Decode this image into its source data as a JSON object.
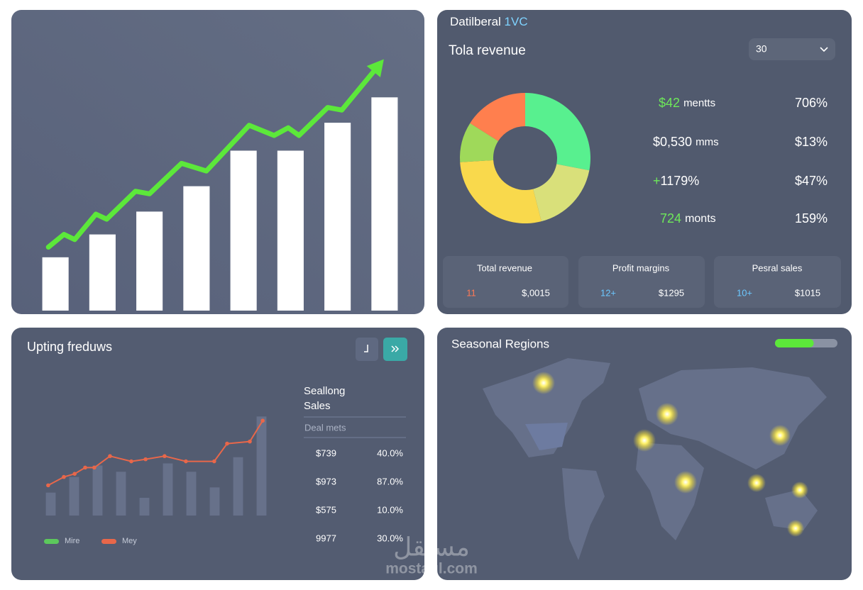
{
  "chart_data": [
    {
      "type": "bar-line",
      "categories": [
        null,
        null,
        null,
        null,
        null,
        null,
        null,
        null
      ],
      "values": [
        21,
        30,
        39,
        49,
        63,
        63,
        74,
        84
      ],
      "bar_color": "#ffffff",
      "line": {
        "x": [
          0.35,
          0.68,
          0.91,
          1.36,
          1.59,
          2.2,
          2.5,
          3.18,
          3.71,
          4.62,
          5.15,
          5.45,
          5.68,
          6.29,
          6.59,
          7.35
        ],
        "values": [
          25,
          30,
          28,
          38,
          36,
          47,
          46,
          58,
          55,
          73,
          69,
          72,
          69,
          80,
          79,
          96
        ],
        "color": "#5ce83a"
      },
      "xlim": [
        0,
        8
      ],
      "ylim": [
        0,
        100
      ]
    },
    {
      "type": "donut",
      "values": [
        28,
        18,
        28,
        10,
        16
      ],
      "colors": [
        "#58f08f",
        "#d9e07a",
        "#f9d94c",
        "#9fd95a",
        "#ff7f4e"
      ]
    },
    {
      "type": "bar-line",
      "categories": [
        null,
        null,
        null,
        null,
        null,
        null,
        null,
        null,
        null,
        null
      ],
      "values": [
        22,
        37,
        48,
        42,
        17,
        50,
        42,
        27,
        56,
        95
      ],
      "bar_color": "#67718a",
      "line": {
        "x": [
          0.39,
          1.06,
          1.52,
          1.97,
          2.36,
          3.03,
          3.94,
          4.55,
          5.36,
          6.27,
          7.48,
          8.03,
          9,
          9.55
        ],
        "values": [
          29,
          37,
          40,
          46,
          46,
          57,
          52,
          54,
          57,
          52,
          52,
          69,
          71,
          91
        ],
        "color": "#e8674a"
      },
      "legend": [
        {
          "name": "Mire",
          "color": "#5cc85c"
        },
        {
          "name": "Mey",
          "color": "#e8674a"
        }
      ],
      "xlim": [
        0,
        10
      ],
      "ylim": [
        0,
        100
      ]
    }
  ],
  "revenue_panel": {
    "app_title": "Datilberal",
    "app_title_accent": "1VC",
    "title": "Tola revenue",
    "dropdown": "30",
    "stats": [
      {
        "value": "$42",
        "unit": "mentts",
        "right": "706%"
      },
      {
        "value": "$0,530",
        "unit": "mms",
        "right": "$13%"
      },
      {
        "value": "+",
        "unit": "1179%",
        "right": "$47%"
      },
      {
        "value": "724",
        "unit": "monts",
        "right": "159%"
      }
    ],
    "cards": [
      {
        "label": "Total revenue",
        "count": "11",
        "amount": "$,0015"
      },
      {
        "label": "Profit margins",
        "count": "12+",
        "amount": "$1295"
      },
      {
        "label": "Pesral sales",
        "count": "10+",
        "amount": "$1015"
      }
    ]
  },
  "trends_panel": {
    "title": "Upting freduws",
    "table_title": [
      "Seallong",
      "Sales"
    ],
    "table_header": "Deal mets",
    "rows": [
      [
        "$739",
        "40.0%"
      ],
      [
        "$973",
        "87.0%"
      ],
      [
        "$575",
        "10.0%"
      ],
      [
        "9977",
        "30.0%"
      ]
    ]
  },
  "regions_panel": {
    "title": "Seasonal Regions",
    "progress": {
      "value": 62,
      "range": [
        0,
        100
      ]
    }
  },
  "watermark": {
    "arabic": "مستقل",
    "latin": "mostaql.com"
  }
}
